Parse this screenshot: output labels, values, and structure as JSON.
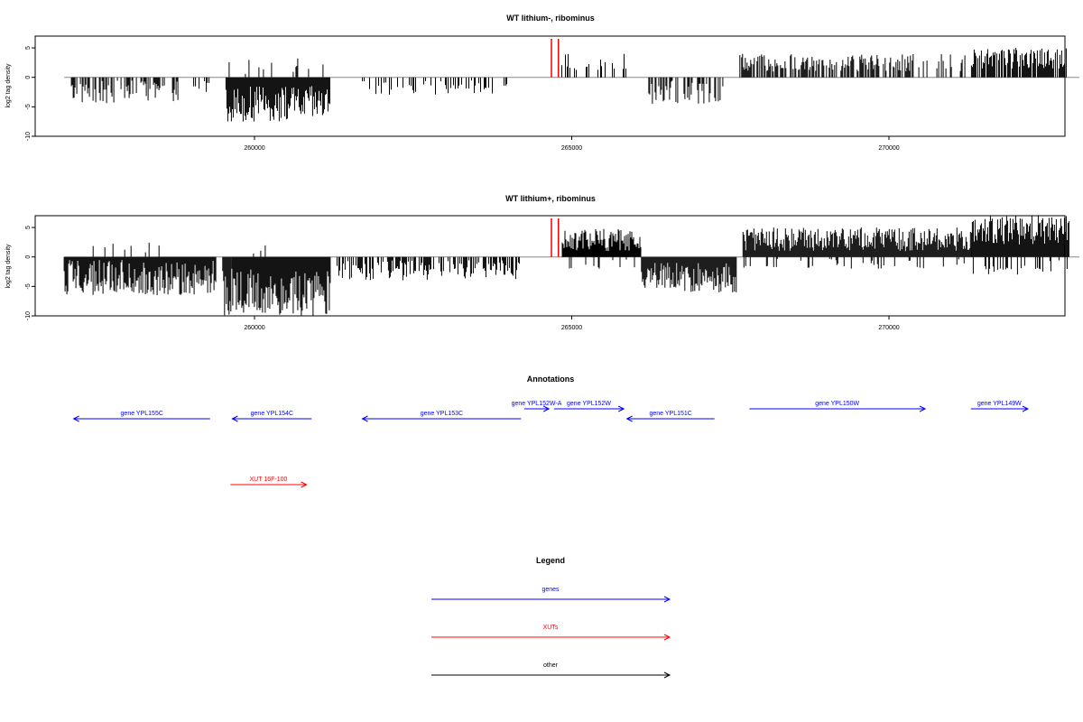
{
  "chart_data": [
    {
      "type": "bar",
      "title": "WT lithium-, ribominus",
      "ylabel": "log2 tag density",
      "xlim": [
        256700,
        273900
      ],
      "ylim": [
        -10,
        7
      ],
      "yticks": [
        "5",
        "0",
        "-5",
        "-10"
      ],
      "ytick_values": [
        5,
        0,
        -5,
        -10
      ],
      "xticks": [
        "260000",
        "265000",
        "270000"
      ],
      "xtick_values": [
        260000,
        265000,
        270000
      ],
      "baseline": [
        257000,
        273000
      ],
      "markers": [
        {
          "x": 264680,
          "color": "#ff0000"
        },
        {
          "x": 264790,
          "color": "#ff0000"
        }
      ],
      "segments": [
        {
          "start": 257100,
          "end": 258800,
          "min": -4.5,
          "max": -0.5,
          "sign": -1,
          "density": 0.5
        },
        {
          "start": 258800,
          "end": 259300,
          "min": -3,
          "max": -0.5,
          "sign": -1,
          "density": 0.3
        },
        {
          "start": 259550,
          "end": 261200,
          "min": -7.5,
          "max": -1.5,
          "sign": -1,
          "density": 1.0
        },
        {
          "start": 259600,
          "end": 261100,
          "min": 0.3,
          "max": 3.5,
          "sign": 1,
          "density": 0.12
        },
        {
          "start": 261700,
          "end": 264100,
          "min": -3,
          "max": -0.5,
          "sign": -1,
          "density": 0.25
        },
        {
          "start": 264830,
          "end": 265900,
          "min": 1,
          "max": 4,
          "sign": 1,
          "density": 0.22
        },
        {
          "start": 266200,
          "end": 267400,
          "min": -4.5,
          "max": -0.5,
          "sign": -1,
          "density": 0.45
        },
        {
          "start": 267650,
          "end": 270400,
          "min": 1,
          "max": 4,
          "sign": 1,
          "density": 0.55
        },
        {
          "start": 270400,
          "end": 271200,
          "min": 1,
          "max": 4,
          "sign": 1,
          "density": 0.3
        },
        {
          "start": 271300,
          "end": 272800,
          "min": 1.5,
          "max": 5,
          "sign": 1,
          "density": 0.8
        }
      ]
    },
    {
      "type": "bar",
      "title": "WT lithium+, ribominus",
      "ylabel": "log2 tag density",
      "xlim": [
        256700,
        273900
      ],
      "ylim": [
        -10,
        7
      ],
      "yticks": [
        "5",
        "0",
        "-5",
        "-10"
      ],
      "ytick_values": [
        5,
        0,
        -5,
        -10
      ],
      "xticks": [
        "260000",
        "265000",
        "270000"
      ],
      "xtick_values": [
        260000,
        265000,
        270000
      ],
      "baseline": [
        257000,
        273000
      ],
      "markers": [
        {
          "x": 264680,
          "color": "#ff0000"
        },
        {
          "x": 264790,
          "color": "#ff0000"
        }
      ],
      "segments": [
        {
          "start": 257000,
          "end": 259400,
          "min": -6.5,
          "max": -0.5,
          "sign": -1,
          "density": 1.0
        },
        {
          "start": 257400,
          "end": 259000,
          "min": 0.3,
          "max": 2.5,
          "sign": 1,
          "density": 0.08
        },
        {
          "start": 259500,
          "end": 261200,
          "min": -10,
          "max": -2,
          "sign": -1,
          "density": 1.0
        },
        {
          "start": 259800,
          "end": 261000,
          "min": 0.3,
          "max": 2.5,
          "sign": 1,
          "density": 0.1
        },
        {
          "start": 261300,
          "end": 264200,
          "min": -4,
          "max": -0.5,
          "sign": -1,
          "density": 0.6
        },
        {
          "start": 264850,
          "end": 266100,
          "min": 1,
          "max": 5,
          "sign": 1,
          "density": 1.0
        },
        {
          "start": 264850,
          "end": 266000,
          "min": -2,
          "max": -0.3,
          "sign": -1,
          "density": 0.15
        },
        {
          "start": 266100,
          "end": 267600,
          "min": -6,
          "max": -1,
          "sign": -1,
          "density": 1.0
        },
        {
          "start": 267700,
          "end": 271300,
          "min": 1,
          "max": 5,
          "sign": 1,
          "density": 1.0
        },
        {
          "start": 267700,
          "end": 271300,
          "min": -2,
          "max": -0.3,
          "sign": -1,
          "density": 0.15
        },
        {
          "start": 271300,
          "end": 272850,
          "min": 2,
          "max": 7,
          "sign": 1,
          "density": 1.0
        },
        {
          "start": 271300,
          "end": 272850,
          "min": -3,
          "max": -0.5,
          "sign": -1,
          "density": 0.25
        }
      ]
    }
  ],
  "annotations": {
    "title": "Annotations",
    "items": [
      {
        "label": "gene YPL155C",
        "start": 257150,
        "end": 259300,
        "strand": "-",
        "color": "#0000ff",
        "row": 1
      },
      {
        "label": "gene YPL154C",
        "start": 259650,
        "end": 260900,
        "strand": "-",
        "color": "#0000ff",
        "row": 1
      },
      {
        "label": "gene YPL153C",
        "start": 261700,
        "end": 264200,
        "strand": "-",
        "color": "#0000ff",
        "row": 1
      },
      {
        "label": "gene YPL152W-A",
        "start": 264250,
        "end": 264640,
        "strand": "+",
        "color": "#0000ff",
        "row": 0
      },
      {
        "label": "gene YPL152W",
        "start": 264720,
        "end": 265820,
        "strand": "+",
        "color": "#0000ff",
        "row": 0
      },
      {
        "label": "gene YPL151C",
        "start": 265870,
        "end": 267250,
        "strand": "-",
        "color": "#0000ff",
        "row": 1
      },
      {
        "label": "gene YPL150W",
        "start": 267800,
        "end": 270570,
        "strand": "+",
        "color": "#0000ff",
        "row": 0
      },
      {
        "label": "gene YPL149W",
        "start": 271290,
        "end": 272190,
        "strand": "+",
        "color": "#0000ff",
        "row": 0
      },
      {
        "label": "XUT 16F-100",
        "start": 259620,
        "end": 260820,
        "strand": "+",
        "color": "#ff0000",
        "row": 2
      }
    ]
  },
  "legend": {
    "title": "Legend",
    "items": [
      {
        "label": "genes",
        "color": "#0000ff"
      },
      {
        "label": "XUTs",
        "color": "#ff0000"
      },
      {
        "label": "other",
        "color": "#000000"
      }
    ]
  }
}
